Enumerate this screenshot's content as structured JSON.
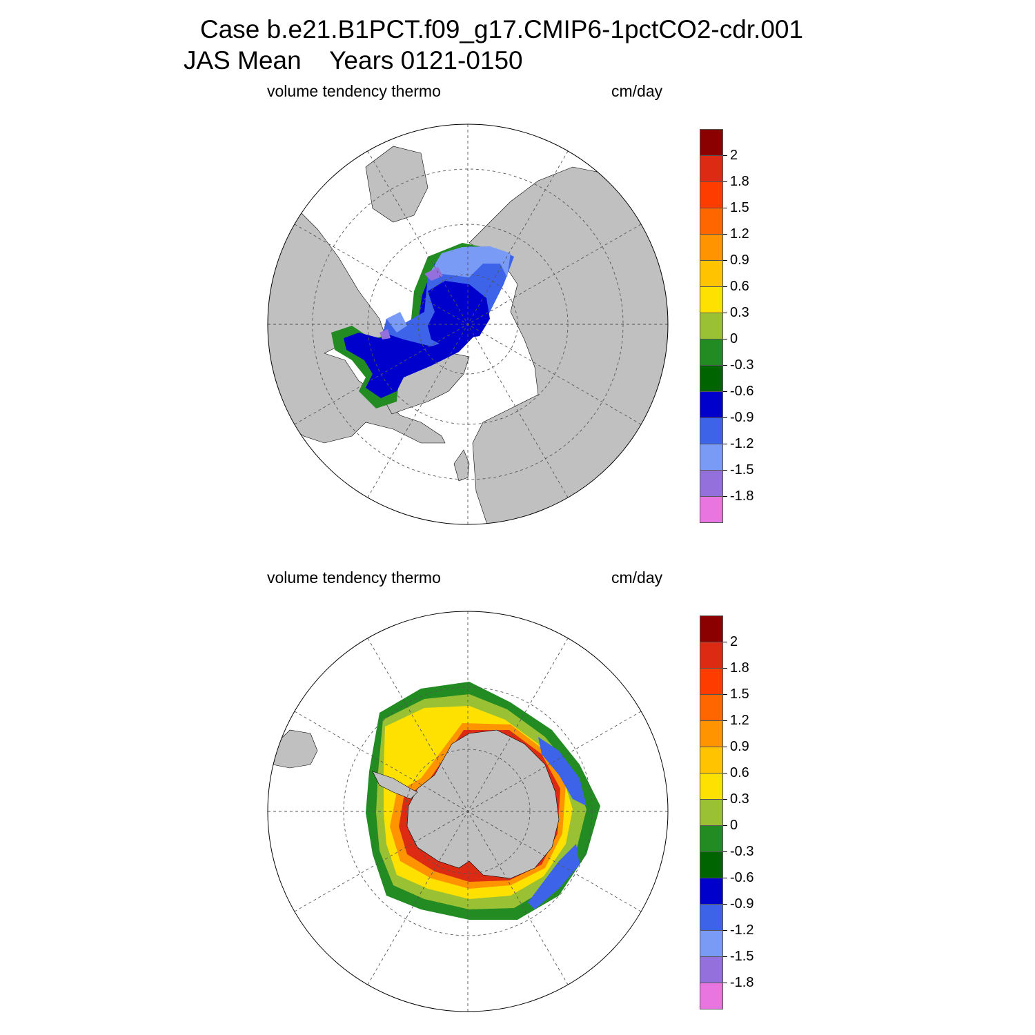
{
  "header": {
    "title_line1": "Case b.e21.B1PCT.f09_g17.CMIP6-1pctCO2-cdr.001",
    "title_line2": "JAS Mean    Years 0121-0150"
  },
  "panels": [
    {
      "id": "north",
      "variable_label": "volume tendency thermo",
      "units_label": "cm/day",
      "hemisphere": "north polar stereographic"
    },
    {
      "id": "south",
      "variable_label": "volume tendency thermo",
      "units_label": "cm/day",
      "hemisphere": "south polar stereographic"
    }
  ],
  "colorbar": {
    "levels": [
      "2",
      "1.8",
      "1.5",
      "1.2",
      "0.9",
      "0.6",
      "0.3",
      "0",
      "-0.3",
      "-0.6",
      "-0.9",
      "-1.2",
      "-1.5",
      "-1.8"
    ],
    "colors": [
      "#8b0000",
      "#dc2b12",
      "#ff3c00",
      "#ff6600",
      "#ff9400",
      "#ffc300",
      "#ffe100",
      "#9ac033",
      "#228b22",
      "#006400",
      "#0000cd",
      "#3c63e8",
      "#7a9bf5",
      "#9370db",
      "#e875e0"
    ]
  },
  "colors": {
    "land": "#c0c0c0",
    "ocean": "#ffffff",
    "grid": "#555555"
  }
}
